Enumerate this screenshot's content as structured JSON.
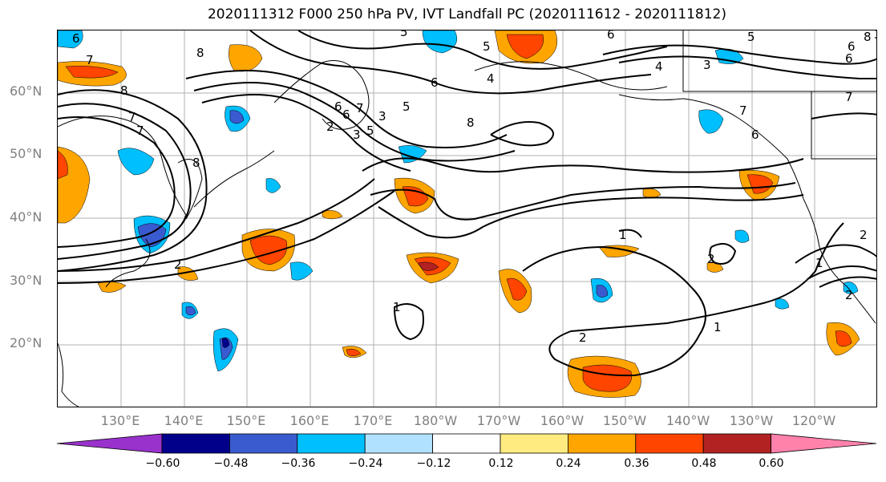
{
  "title": "2020111312 F000 250 hPa PV, IVT Landfall PC (2020111612 - 2020111812)",
  "map": {
    "lat_labels": [
      "60°N",
      "50°N",
      "40°N",
      "30°N",
      "20°N"
    ],
    "lon_labels": [
      "130°E",
      "140°E",
      "150°E",
      "160°E",
      "170°E",
      "180°W",
      "170°W",
      "160°W",
      "150°W",
      "140°W",
      "130°W",
      "120°W"
    ],
    "contour_labels": [
      "6",
      "7",
      "8",
      "8",
      "7",
      "8",
      "6",
      "7",
      "5",
      "5",
      "6",
      "6",
      "5",
      "3",
      "8",
      "4",
      "7",
      "2",
      "2",
      "6",
      "5",
      "5",
      "6",
      "8",
      "4",
      "6",
      "3",
      "2",
      "7",
      "6",
      "7",
      "2",
      "1",
      "1",
      "1",
      "2",
      "1",
      "2",
      "3",
      "3"
    ],
    "fill_description": "PV shaded anomalies",
    "colors": {
      "land_outline": "#000000",
      "grid": "#b0b0b0",
      "contour": "#000000"
    }
  },
  "colorbar": {
    "ticks": [
      "−0.60",
      "−0.48",
      "−0.36",
      "−0.24",
      "−0.12",
      "0.12",
      "0.24",
      "0.36",
      "0.48",
      "0.60"
    ],
    "colors": [
      "#9932cc",
      "#00008b",
      "#3a5bcf",
      "#00bfff",
      "#b0e2ff",
      "#ffffff",
      "#ffeb80",
      "#ffa500",
      "#ff4500",
      "#b22222",
      "#ff82ab"
    ]
  }
}
